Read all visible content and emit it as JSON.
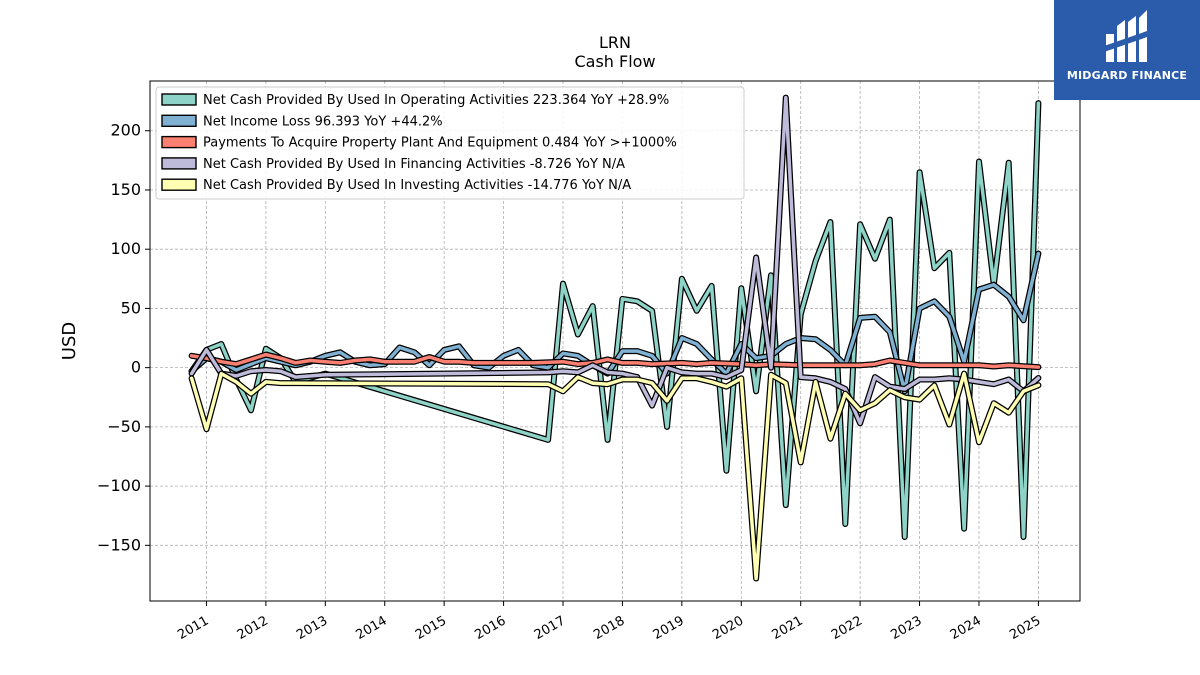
{
  "chart_data": {
    "type": "line",
    "title": "LRN",
    "subtitle": "Cash Flow",
    "ylabel": "USD",
    "ylim": [
      -197,
      242
    ],
    "xlim": [
      2010.05,
      2025.7
    ],
    "yticks": [
      -150,
      -100,
      -50,
      0,
      50,
      100,
      150,
      200
    ],
    "yticklabels": [
      "−150",
      "−100",
      "−50",
      "0",
      "50",
      "100",
      "150",
      "200"
    ],
    "xticks": [
      2011,
      2012,
      2013,
      2014,
      2015,
      2016,
      2017,
      2018,
      2019,
      2020,
      2021,
      2022,
      2023,
      2024,
      2025
    ],
    "xticklabels": [
      "2011",
      "2012",
      "2013",
      "2014",
      "2015",
      "2016",
      "2017",
      "2018",
      "2019",
      "2020",
      "2021",
      "2022",
      "2023",
      "2024",
      "2025"
    ],
    "grid": true,
    "legend_position": "top-left",
    "series": [
      {
        "name": "Net Cash Provided By Used In Operating Activities  223.364 YoY +28.9%",
        "color": "#8dd3c7",
        "points": [
          [
            2010.75,
            -3
          ],
          [
            2011.0,
            15
          ],
          [
            2011.25,
            20
          ],
          [
            2011.5,
            -10
          ],
          [
            2011.75,
            -36
          ],
          [
            2012.0,
            16
          ],
          [
            2012.25,
            8
          ],
          [
            2012.5,
            -12
          ],
          [
            2013.0,
            -5
          ],
          [
            2016.75,
            -61
          ],
          [
            2017.0,
            71
          ],
          [
            2017.25,
            28
          ],
          [
            2017.5,
            52
          ],
          [
            2017.75,
            -61
          ],
          [
            2018.0,
            58
          ],
          [
            2018.25,
            56
          ],
          [
            2018.5,
            48
          ],
          [
            2018.75,
            -50
          ],
          [
            2019.0,
            75
          ],
          [
            2019.25,
            48
          ],
          [
            2019.5,
            69
          ],
          [
            2019.75,
            -87
          ],
          [
            2020.0,
            67
          ],
          [
            2020.25,
            -20
          ],
          [
            2020.5,
            78
          ],
          [
            2020.75,
            -116
          ],
          [
            2021.0,
            45
          ],
          [
            2021.25,
            90
          ],
          [
            2021.5,
            123
          ],
          [
            2021.75,
            -132
          ],
          [
            2022.0,
            121
          ],
          [
            2022.25,
            92
          ],
          [
            2022.5,
            125
          ],
          [
            2022.75,
            -143
          ],
          [
            2023.0,
            165
          ],
          [
            2023.25,
            84
          ],
          [
            2023.5,
            97
          ],
          [
            2023.75,
            -136
          ],
          [
            2024.0,
            174
          ],
          [
            2024.25,
            70
          ],
          [
            2024.5,
            173
          ],
          [
            2024.75,
            -143
          ],
          [
            2025.0,
            223.364
          ]
        ]
      },
      {
        "name": "Net Income Loss  96.393 YoY +44.2%",
        "color": "#80b1d3",
        "points": [
          [
            2010.75,
            -3
          ],
          [
            2011.0,
            8
          ],
          [
            2011.25,
            5
          ],
          [
            2011.5,
            -2
          ],
          [
            2011.75,
            3
          ],
          [
            2012.0,
            8
          ],
          [
            2012.25,
            5
          ],
          [
            2012.5,
            2
          ],
          [
            2012.75,
            5
          ],
          [
            2013.0,
            10
          ],
          [
            2013.25,
            13
          ],
          [
            2013.5,
            5
          ],
          [
            2013.75,
            2
          ],
          [
            2014.0,
            3
          ],
          [
            2014.25,
            17
          ],
          [
            2014.5,
            13
          ],
          [
            2014.75,
            2
          ],
          [
            2015.0,
            15
          ],
          [
            2015.25,
            18
          ],
          [
            2015.5,
            2
          ],
          [
            2015.75,
            0
          ],
          [
            2016.0,
            10
          ],
          [
            2016.25,
            15
          ],
          [
            2016.5,
            2
          ],
          [
            2016.75,
            0
          ],
          [
            2017.0,
            12
          ],
          [
            2017.25,
            10
          ],
          [
            2017.5,
            2
          ],
          [
            2017.75,
            -5
          ],
          [
            2018.0,
            14
          ],
          [
            2018.25,
            14
          ],
          [
            2018.5,
            10
          ],
          [
            2018.75,
            -5
          ],
          [
            2019.0,
            25
          ],
          [
            2019.25,
            20
          ],
          [
            2019.5,
            7
          ],
          [
            2019.75,
            -5
          ],
          [
            2020.0,
            20
          ],
          [
            2020.25,
            8
          ],
          [
            2020.5,
            10
          ],
          [
            2020.75,
            20
          ],
          [
            2021.0,
            25
          ],
          [
            2021.25,
            24
          ],
          [
            2021.5,
            15
          ],
          [
            2021.75,
            2
          ],
          [
            2022.0,
            42
          ],
          [
            2022.25,
            43
          ],
          [
            2022.5,
            30
          ],
          [
            2022.75,
            -20
          ],
          [
            2023.0,
            50
          ],
          [
            2023.25,
            56
          ],
          [
            2023.5,
            43
          ],
          [
            2023.75,
            5
          ],
          [
            2024.0,
            66
          ],
          [
            2024.25,
            70
          ],
          [
            2024.5,
            60
          ],
          [
            2024.75,
            40
          ],
          [
            2025.0,
            96.393
          ]
        ]
      },
      {
        "name": "Payments To Acquire Property Plant And Equipment  0.484 YoY >+1000%",
        "color": "#fb8072",
        "points": [
          [
            2010.75,
            10
          ],
          [
            2011.0,
            8
          ],
          [
            2011.25,
            5
          ],
          [
            2011.5,
            3
          ],
          [
            2011.75,
            7
          ],
          [
            2012.0,
            11
          ],
          [
            2012.25,
            8
          ],
          [
            2012.5,
            4
          ],
          [
            2012.75,
            6
          ],
          [
            2013.0,
            5
          ],
          [
            2013.25,
            4
          ],
          [
            2013.5,
            6
          ],
          [
            2013.75,
            7
          ],
          [
            2014.0,
            5
          ],
          [
            2014.25,
            5
          ],
          [
            2014.5,
            5
          ],
          [
            2014.75,
            9
          ],
          [
            2015.0,
            5
          ],
          [
            2015.25,
            5
          ],
          [
            2015.5,
            4
          ],
          [
            2016.0,
            4
          ],
          [
            2016.5,
            4
          ],
          [
            2017.0,
            5
          ],
          [
            2017.25,
            3
          ],
          [
            2017.5,
            4
          ],
          [
            2017.75,
            7
          ],
          [
            2018.0,
            4
          ],
          [
            2018.25,
            4
          ],
          [
            2018.5,
            3
          ],
          [
            2019.0,
            4
          ],
          [
            2019.25,
            3
          ],
          [
            2019.5,
            4
          ],
          [
            2020.0,
            3
          ],
          [
            2020.25,
            2
          ],
          [
            2020.5,
            3
          ],
          [
            2021.0,
            2
          ],
          [
            2021.5,
            2
          ],
          [
            2022.0,
            2
          ],
          [
            2022.25,
            3
          ],
          [
            2022.5,
            6
          ],
          [
            2022.75,
            4
          ],
          [
            2023.0,
            2
          ],
          [
            2023.5,
            2
          ],
          [
            2024.0,
            2
          ],
          [
            2024.25,
            1
          ],
          [
            2024.5,
            2
          ],
          [
            2025.0,
            0.484
          ]
        ]
      },
      {
        "name": "Net Cash Provided By Used In Financing Activities  -8.726 YoY N/A",
        "color": "#bebada",
        "points": [
          [
            2010.75,
            -5
          ],
          [
            2011.0,
            15
          ],
          [
            2011.25,
            -5
          ],
          [
            2011.5,
            -7
          ],
          [
            2011.75,
            -3
          ],
          [
            2012.0,
            -2
          ],
          [
            2012.25,
            -3
          ],
          [
            2012.5,
            -8
          ],
          [
            2013.0,
            -6
          ],
          [
            2016.75,
            -4
          ],
          [
            2017.0,
            -3
          ],
          [
            2017.25,
            -4
          ],
          [
            2017.5,
            2
          ],
          [
            2017.75,
            -4
          ],
          [
            2018.0,
            -5
          ],
          [
            2018.25,
            -8
          ],
          [
            2018.5,
            -32
          ],
          [
            2018.75,
            0
          ],
          [
            2019.0,
            -4
          ],
          [
            2019.25,
            -5
          ],
          [
            2019.5,
            -5
          ],
          [
            2019.75,
            -8
          ],
          [
            2020.0,
            -2
          ],
          [
            2020.25,
            93
          ],
          [
            2020.5,
            0
          ],
          [
            2020.75,
            228
          ],
          [
            2021.0,
            -8
          ],
          [
            2021.25,
            -9
          ],
          [
            2021.5,
            -12
          ],
          [
            2021.75,
            -18
          ],
          [
            2022.0,
            -47
          ],
          [
            2022.25,
            -8
          ],
          [
            2022.5,
            -16
          ],
          [
            2022.75,
            -18
          ],
          [
            2023.0,
            -10
          ],
          [
            2023.25,
            -10
          ],
          [
            2023.5,
            -9
          ],
          [
            2023.75,
            -10
          ],
          [
            2024.0,
            -12
          ],
          [
            2024.25,
            -14
          ],
          [
            2024.5,
            -10
          ],
          [
            2024.75,
            -20
          ],
          [
            2025.0,
            -8.726
          ]
        ]
      },
      {
        "name": "Net Cash Provided By Used In Investing Activities  -14.776 YoY N/A",
        "color": "#ffffb3",
        "points": [
          [
            2010.75,
            -9
          ],
          [
            2011.0,
            -52
          ],
          [
            2011.25,
            -5
          ],
          [
            2011.5,
            -12
          ],
          [
            2011.75,
            -22
          ],
          [
            2012.0,
            -12
          ],
          [
            2012.25,
            -13
          ],
          [
            2012.5,
            -13
          ],
          [
            2016.75,
            -14
          ],
          [
            2017.0,
            -20
          ],
          [
            2017.25,
            -8
          ],
          [
            2017.5,
            -13
          ],
          [
            2017.75,
            -14
          ],
          [
            2018.0,
            -10
          ],
          [
            2018.25,
            -10
          ],
          [
            2018.5,
            -13
          ],
          [
            2018.75,
            -28
          ],
          [
            2019.0,
            -9
          ],
          [
            2019.25,
            -9
          ],
          [
            2019.5,
            -12
          ],
          [
            2019.75,
            -16
          ],
          [
            2020.0,
            -9
          ],
          [
            2020.25,
            -178
          ],
          [
            2020.5,
            -6
          ],
          [
            2020.75,
            -13
          ],
          [
            2021.0,
            -80
          ],
          [
            2021.25,
            -12
          ],
          [
            2021.5,
            -60
          ],
          [
            2021.75,
            -22
          ],
          [
            2022.0,
            -36
          ],
          [
            2022.25,
            -30
          ],
          [
            2022.5,
            -19
          ],
          [
            2022.75,
            -25
          ],
          [
            2023.0,
            -27
          ],
          [
            2023.25,
            -15
          ],
          [
            2023.5,
            -48
          ],
          [
            2023.75,
            -5
          ],
          [
            2024.0,
            -63
          ],
          [
            2024.25,
            -30
          ],
          [
            2024.5,
            -38
          ],
          [
            2024.75,
            -20
          ],
          [
            2025.0,
            -14.776
          ]
        ]
      }
    ]
  },
  "logo": {
    "text": "MIDGARD FINANCE"
  }
}
